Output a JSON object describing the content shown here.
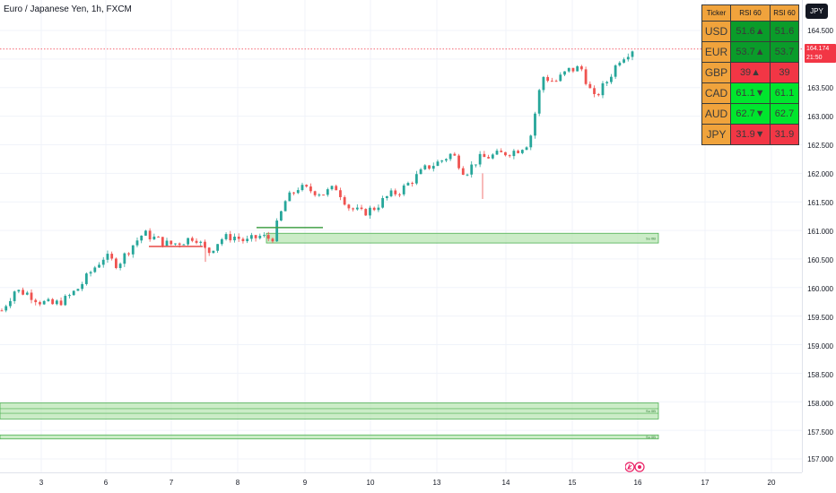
{
  "header": {
    "symbol_title": "Euro / Japanese Yen, 1h, FXCM"
  },
  "toolbar": {
    "currency_button": "JPY"
  },
  "price_axis": {
    "labels": [
      "164.500",
      "164.000",
      "163.500",
      "163.000",
      "162.500",
      "162.000",
      "161.500",
      "161.000",
      "160.500",
      "160.000",
      "159.500",
      "159.000",
      "158.500",
      "158.000",
      "157.500",
      "157.000"
    ],
    "last_price": "164.174",
    "countdown": "21:50"
  },
  "time_axis": {
    "labels": [
      "3",
      "6",
      "7",
      "8",
      "9",
      "10",
      "13",
      "14",
      "15",
      "16",
      "17",
      "20"
    ]
  },
  "rsi_table": {
    "headers": [
      "Ticker",
      "RSI 60",
      "RSI 60"
    ],
    "rows": [
      {
        "ticker": "USD",
        "rsi_arrow": "51.6▲",
        "rsi": "51.6",
        "bg_arrow": "#0a9c2a",
        "bg_value": "#0a9c2a"
      },
      {
        "ticker": "EUR",
        "rsi_arrow": "53.7▲",
        "rsi": "53.7",
        "bg_arrow": "#0a9c2a",
        "bg_value": "#0a9c2a"
      },
      {
        "ticker": "GBP",
        "rsi_arrow": "39▲",
        "rsi": "39",
        "bg_arrow": "#f23645",
        "bg_value": "#f23645"
      },
      {
        "ticker": "CAD",
        "rsi_arrow": "61.1▼",
        "rsi": "61.1",
        "bg_arrow": "#00e62e",
        "bg_value": "#00e62e"
      },
      {
        "ticker": "AUD",
        "rsi_arrow": "62.7▼",
        "rsi": "62.7",
        "bg_arrow": "#00e62e",
        "bg_value": "#00e62e"
      },
      {
        "ticker": "JPY",
        "rsi_arrow": "31.9▼",
        "rsi": "31.9",
        "bg_arrow": "#f23645",
        "bg_value": "#f23645"
      }
    ]
  },
  "zones": {
    "label": "Su 0B"
  },
  "colors": {
    "up": "#26a69a",
    "down": "#ef5350",
    "zone_fill": "#b9e6b4",
    "zone_border": "#4caf50",
    "last_price": "#f23645"
  },
  "chart_data": {
    "type": "candlestick",
    "title": "Euro / Japanese Yen, 1h, FXCM",
    "ylim": [
      156.9,
      164.8
    ],
    "x_labels": [
      "3",
      "6",
      "7",
      "8",
      "9",
      "10",
      "13",
      "14",
      "15",
      "16",
      "17",
      "20"
    ],
    "close_path": [
      159.6,
      159.95,
      159.9,
      159.75,
      159.7,
      159.8,
      160.0,
      160.3,
      160.55,
      160.4,
      160.7,
      160.95,
      160.85,
      160.75,
      160.8,
      160.9,
      160.6,
      160.85,
      160.9,
      160.8,
      160.9,
      160.85,
      161.5,
      161.75,
      161.7,
      161.65,
      161.75,
      161.4,
      161.3,
      161.4,
      161.6,
      161.7,
      161.9,
      162.1,
      162.2,
      162.35,
      162.0,
      162.25,
      162.3,
      162.35,
      162.4,
      162.55,
      163.7,
      163.6,
      163.8,
      163.85,
      163.3,
      163.6,
      164.0,
      164.174
    ],
    "last_price": 164.174
  }
}
